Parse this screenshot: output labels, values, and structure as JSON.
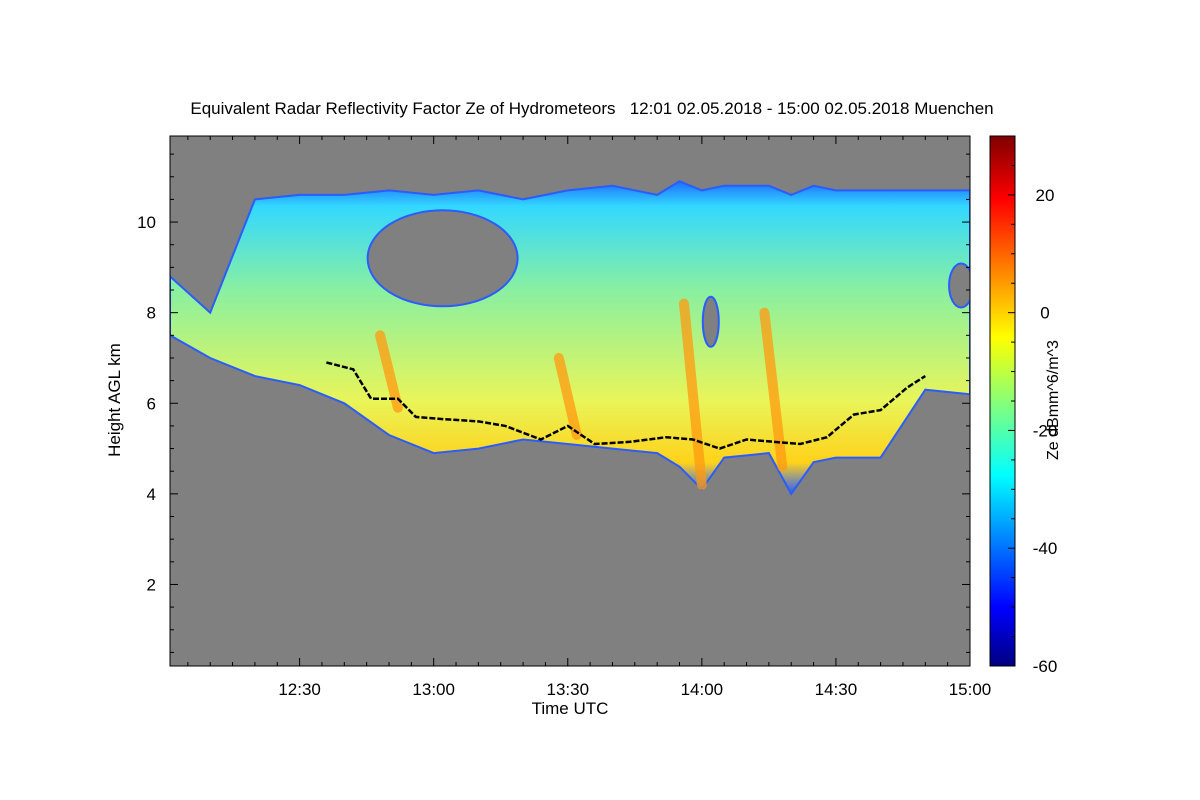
{
  "chart_data": {
    "type": "heatmap",
    "title": "Equivalent Radar Reflectivity Factor Ze of Hydrometeors   12:01 02.05.2018 - 15:00 02.05.2018 Muenchen",
    "xlabel": "Time UTC",
    "ylabel": "Height AGL km",
    "xlim": [
      "12:01",
      "15:00"
    ],
    "ylim": [
      0.2,
      11.9
    ],
    "x_tick_labels": [
      "12:30",
      "13:00",
      "13:30",
      "14:00",
      "14:30",
      "15:00"
    ],
    "y_tick_labels": [
      "2",
      "4",
      "6",
      "8",
      "10"
    ],
    "x_tick_values_min": [
      30,
      60,
      90,
      120,
      150,
      180
    ],
    "y_tick_values_km": [
      2,
      4,
      6,
      8,
      10
    ],
    "colorbar": {
      "label": "Ze dBmm^6/m^3",
      "range": [
        -60,
        30
      ],
      "tick_labels": [
        "-60",
        "-40",
        "-20",
        "0",
        "20"
      ],
      "tick_values": [
        -60,
        -40,
        -20,
        0,
        20
      ],
      "colormap": "jet"
    },
    "background_color": "#808080",
    "echo_profile": {
      "description_units": "minutes after 12:00 / km",
      "time_min": [
        1,
        10,
        20,
        30,
        40,
        50,
        60,
        70,
        80,
        90,
        100,
        110,
        115,
        120,
        125,
        135,
        140,
        145,
        150,
        160,
        170,
        180
      ],
      "cloud_top_km": [
        8.8,
        8.0,
        10.5,
        10.6,
        10.6,
        10.7,
        10.6,
        10.7,
        10.5,
        10.7,
        10.8,
        10.6,
        10.9,
        10.7,
        10.8,
        10.8,
        10.6,
        10.8,
        10.7,
        10.7,
        10.7,
        10.7
      ],
      "cloud_base_km": [
        7.5,
        7.0,
        6.6,
        6.4,
        6.0,
        5.3,
        4.9,
        5.0,
        5.2,
        5.1,
        5.0,
        4.9,
        4.6,
        4.1,
        4.8,
        4.9,
        4.0,
        4.7,
        4.8,
        4.8,
        6.3,
        6.2
      ],
      "cutout_regions": [
        {
          "time_center_min": 62,
          "height_center_km": 9.2
        },
        {
          "time_center_min": 122,
          "height_center_km": 7.8
        },
        {
          "time_center_min": 178,
          "height_center_km": 8.6
        }
      ]
    },
    "melting_layer_line": {
      "time_min": [
        36,
        42,
        46,
        52,
        56,
        62,
        70,
        76,
        84,
        90,
        96,
        104,
        112,
        118,
        124,
        130,
        136,
        142,
        148,
        154,
        160,
        166,
        170
      ],
      "height_km": [
        6.9,
        6.75,
        6.1,
        6.1,
        5.7,
        5.65,
        5.6,
        5.5,
        5.2,
        5.5,
        5.1,
        5.15,
        5.25,
        5.2,
        5.0,
        5.2,
        5.15,
        5.1,
        5.25,
        5.75,
        5.85,
        6.35,
        6.6
      ]
    }
  }
}
